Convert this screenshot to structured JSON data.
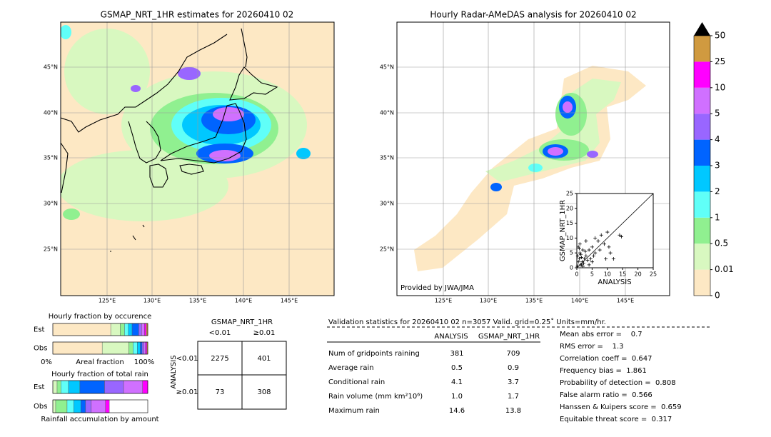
{
  "left_map": {
    "title": "GSMAP_NRT_1HR estimates for 20260410 02",
    "lat_labels": [
      "45°N",
      "40°N",
      "35°N",
      "30°N",
      "25°N"
    ],
    "lon_labels": [
      "125°E",
      "130°E",
      "135°E",
      "140°E",
      "145°E"
    ]
  },
  "right_map": {
    "title": "Hourly Radar-AMeDAS analysis for 20260410 02",
    "lat_labels": [
      "45°N",
      "40°N",
      "35°N",
      "30°N",
      "25°N"
    ],
    "lon_labels": [
      "125°E",
      "130°E",
      "135°E",
      "140°E",
      "145°E"
    ],
    "credit": "Provided by JWA/JMA"
  },
  "colorbar": {
    "levels": [
      0,
      0.01,
      0.5,
      1,
      2,
      3,
      4,
      5,
      10,
      25,
      50
    ],
    "colors": [
      "#fde8c4",
      "#d8f8c0",
      "#90f090",
      "#60fff8",
      "#00c8ff",
      "#0064ff",
      "#9966ff",
      "#d070ff",
      "#ff00ff",
      "#d09a40"
    ],
    "extend_color": "#000000"
  },
  "scatter": {
    "type": "scatter",
    "xlabel": "ANALYSIS",
    "ylabel": "GSMAP_NRT_1HR",
    "xlim": [
      0,
      25
    ],
    "ylim": [
      0,
      25
    ],
    "xticks": [
      0,
      5,
      10,
      15,
      20,
      25
    ],
    "yticks": [
      0,
      5,
      10,
      15,
      20,
      25
    ],
    "x": [
      0.3,
      0.5,
      0.8,
      1,
      1.2,
      1.5,
      1.8,
      2,
      2.2,
      2.5,
      3,
      3.5,
      4,
      4.5,
      5,
      5.5,
      6,
      7,
      7.5,
      8,
      9,
      10,
      10.5,
      11,
      12,
      14,
      14.6,
      0.5,
      1,
      1.5,
      2,
      3,
      4,
      5,
      6,
      0.2,
      0.8,
      1.3,
      2.8,
      9.5
    ],
    "y": [
      4,
      2,
      3,
      5,
      1,
      3.5,
      2,
      6,
      1.5,
      3,
      4,
      2.5,
      6,
      3,
      7,
      4,
      5,
      9,
      6,
      11,
      8,
      12,
      7,
      5,
      3,
      11,
      10.5,
      7,
      8,
      1,
      0.5,
      9,
      1,
      2,
      10,
      0.5,
      6.5,
      4.5,
      5.5,
      3
    ]
  },
  "occurrence": {
    "title": "Hourly fraction by occurence",
    "axis_left": "0%",
    "axis_label": "Areal fraction",
    "axis_right": "100%",
    "colors": [
      "#fde8c4",
      "#d8f8c0",
      "#90f090",
      "#60fff8",
      "#00c8ff",
      "#0064ff",
      "#9966ff",
      "#d070ff",
      "#ff00ff",
      "#d09a40"
    ],
    "series": [
      {
        "name": "Est",
        "values": [
          61,
          10,
          4.5,
          4,
          4,
          7,
          3,
          3,
          2,
          1.5
        ]
      },
      {
        "name": "Obs",
        "values": [
          52,
          28,
          4.5,
          4.5,
          3,
          2,
          2,
          1.5,
          1.5,
          1
        ]
      }
    ]
  },
  "total_rain": {
    "title": "Hourly fraction of total rain",
    "footer": "Rainfall accumulation by amount",
    "colors": [
      "#d8f8c0",
      "#90f090",
      "#60fff8",
      "#00c8ff",
      "#0064ff",
      "#9966ff",
      "#d070ff",
      "#ff00ff"
    ],
    "series": [
      {
        "name": "Est",
        "values": [
          4.5,
          4,
          8,
          12,
          26,
          20,
          20,
          5.5
        ]
      },
      {
        "name": "Obs",
        "values": [
          3,
          12,
          7,
          7.5,
          5,
          6,
          15,
          4
        ]
      }
    ]
  },
  "contingency": {
    "title": "GSMAP_NRT_1HR",
    "columns": [
      "<0.01",
      "≥0.01"
    ],
    "row_title": "ANALYSIS",
    "rows": [
      "<0.01",
      "≥0.01"
    ],
    "cells": [
      [
        2275,
        401
      ],
      [
        73,
        308
      ]
    ]
  },
  "validation": {
    "header": "Validation statistics for 20260410 02  n=3057 Valid. grid=0.25˚ Units=mm/hr.",
    "columns": [
      "ANALYSIS",
      "GSMAP_NRT_1HR"
    ],
    "rows": [
      {
        "label": "Num of gridpoints raining",
        "values": [
          "381",
          "709"
        ]
      },
      {
        "label": "Average rain",
        "values": [
          "0.5",
          "0.9"
        ]
      },
      {
        "label": "Conditional rain",
        "values": [
          "4.1",
          "3.7"
        ]
      },
      {
        "label": "Rain volume (mm km²10⁶)",
        "values": [
          "1.0",
          "1.7"
        ]
      },
      {
        "label": "Maximum rain",
        "values": [
          "14.6",
          "13.8"
        ]
      }
    ],
    "scores": [
      "Mean abs error =    0.7",
      "RMS error =    1.3",
      "Correlation coeff =  0.647",
      "Frequency bias =  1.861",
      "Probability of detection =  0.808",
      "False alarm ratio =  0.566",
      "Hanssen & Kuipers score =  0.659",
      "Equitable threat score =  0.317"
    ]
  }
}
